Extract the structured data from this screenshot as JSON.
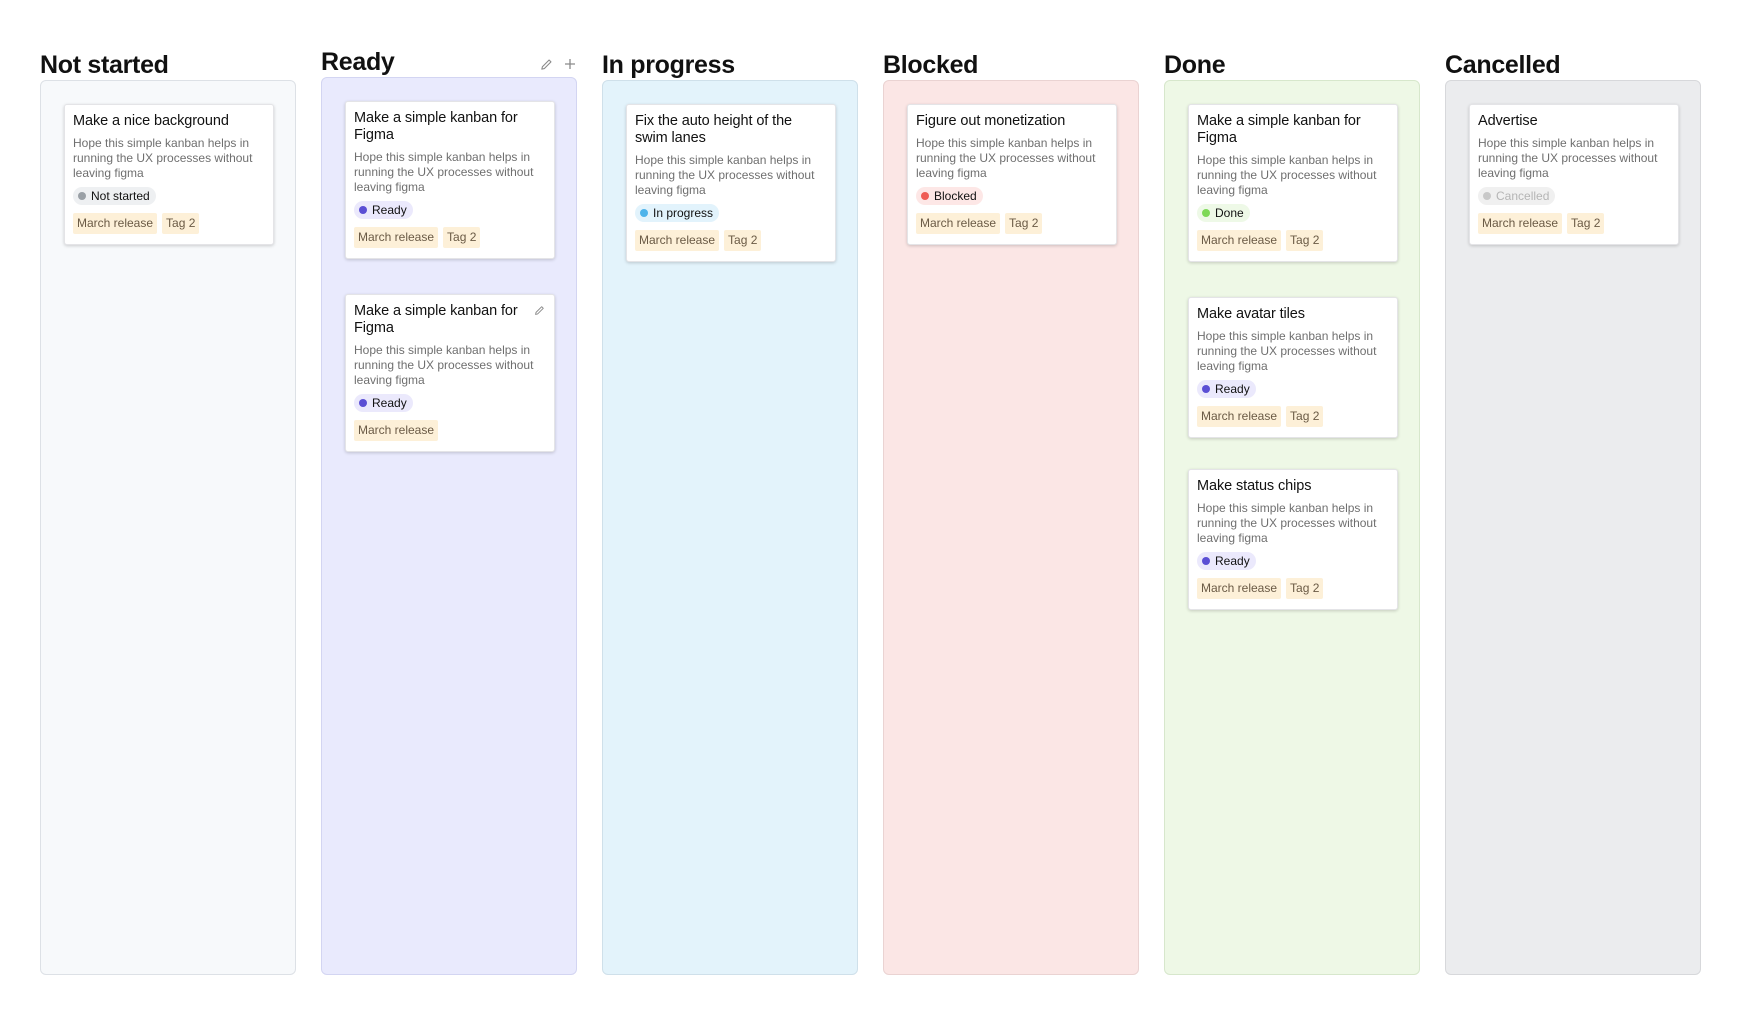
{
  "icons": {
    "edit": "pencil-icon",
    "add": "plus-icon"
  },
  "columns": [
    {
      "title": "Not started",
      "lane_color": "#f7f9fb",
      "lane_border": "#dde1e6",
      "cards": [
        {
          "title": "Make a nice background",
          "desc": "Hope this simple kanban helps in running the UX processes without leaving figma",
          "status": {
            "label": "Not started",
            "dot": "#9aa0a6",
            "bg": "#eef0f2",
            "text": "#111111"
          },
          "tags": [
            "March release",
            "Tag 2"
          ]
        }
      ]
    },
    {
      "title": "Ready",
      "lane_color": "#e9eafd",
      "lane_border": "#d3d5f2",
      "cards": [
        {
          "title": "Make a simple kanban for Figma",
          "desc": "Hope this simple kanban helps in running the UX processes without leaving figma",
          "status": {
            "label": "Ready",
            "dot": "#5b4fd4",
            "bg": "#ebe9fc",
            "text": "#111111"
          },
          "tags": [
            "March release",
            "Tag 2"
          ]
        },
        {
          "title": "Make a simple kanban for Figma",
          "desc": "Hope this simple kanban helps in running the UX processes without leaving figma",
          "status": {
            "label": "Ready",
            "dot": "#5b4fd4",
            "bg": "#ebe9fc",
            "text": "#111111"
          },
          "tags": [
            "March release"
          ]
        }
      ]
    },
    {
      "title": "In progress",
      "lane_color": "#e3f3fb",
      "lane_border": "#cfe0ea",
      "cards": [
        {
          "title": "Fix the auto height of the swim lanes",
          "desc": "Hope this simple kanban helps in running the UX processes without leaving figma",
          "status": {
            "label": "In progress",
            "dot": "#4db3ea",
            "bg": "#e2f3fc",
            "text": "#111111"
          },
          "tags": [
            "March release",
            "Tag 2"
          ]
        }
      ]
    },
    {
      "title": "Blocked",
      "lane_color": "#fbe6e5",
      "lane_border": "#ead3d2",
      "cards": [
        {
          "title": "Figure out monetization",
          "desc": "Hope this simple kanban helps in running the UX processes without leaving figma",
          "status": {
            "label": "Blocked",
            "dot": "#ef5c55",
            "bg": "#fde7e6",
            "text": "#111111"
          },
          "tags": [
            "March release",
            "Tag 2"
          ]
        }
      ]
    },
    {
      "title": "Done",
      "lane_color": "#eef8e6",
      "lane_border": "#d7e7cc",
      "cards": [
        {
          "title": "Make a simple kanban for Figma",
          "desc": "Hope this simple kanban helps in running the UX processes without leaving figma",
          "status": {
            "label": "Done",
            "dot": "#7ed957",
            "bg": "#eef9e7",
            "text": "#111111"
          },
          "tags": [
            "March release",
            "Tag 2"
          ]
        },
        {
          "title": "Make avatar tiles",
          "desc": "Hope this simple kanban helps in running the UX processes without leaving figma",
          "status": {
            "label": "Ready",
            "dot": "#5b4fd4",
            "bg": "#ebe9fc",
            "text": "#111111"
          },
          "tags": [
            "March release",
            "Tag 2"
          ]
        },
        {
          "title": "Make status chips",
          "desc": "Hope this simple kanban helps in running the UX processes without leaving figma",
          "status": {
            "label": "Ready",
            "dot": "#5b4fd4",
            "bg": "#ebe9fc",
            "text": "#111111"
          },
          "tags": [
            "March release",
            "Tag 2"
          ]
        }
      ]
    },
    {
      "title": "Cancelled",
      "lane_color": "#ebecee",
      "lane_border": "#d7d8db",
      "cards": [
        {
          "title": "Advertise",
          "desc": "Hope this simple kanban helps in running the UX processes without leaving figma",
          "status": {
            "label": "Cancelled",
            "dot": "#c8c8c8",
            "bg": "#f0f0f0",
            "text": "#b5b5b5"
          },
          "tags": [
            "March release",
            "Tag 2"
          ]
        }
      ]
    }
  ]
}
